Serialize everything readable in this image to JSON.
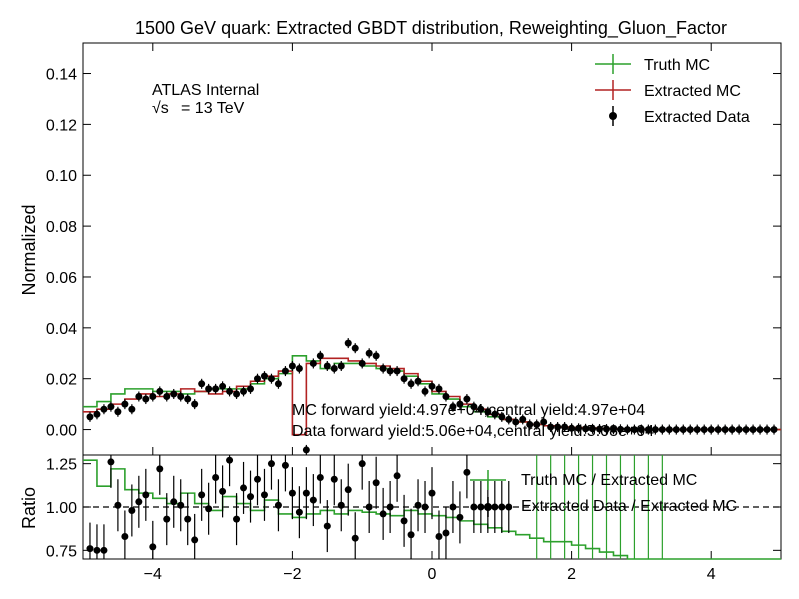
{
  "chart_data": [
    {
      "type": "histogram",
      "title": "1500 GeV quark: Extracted GBDT distribution, Reweighting_Gluon_Factor",
      "ylabel": "Normalized",
      "xlim": [
        -5,
        5
      ],
      "ylim": [
        -0.01,
        0.152
      ],
      "yticks": [
        "0.00",
        "0.02",
        "0.04",
        "0.06",
        "0.08",
        "0.10",
        "0.12",
        "0.14"
      ],
      "atlas_label": "ATLAS Internal",
      "energy_label_symbol": "√s",
      "energy_label_value": "= 13 TeV",
      "legend_position": "top-right",
      "bin_edges_x": [
        -5.0,
        -4.8,
        -4.6,
        -4.4,
        -4.2,
        -4.0,
        -3.8,
        -3.6,
        -3.4,
        -3.2,
        -3.0,
        -2.8,
        -2.6,
        -2.4,
        -2.2,
        -2.0,
        -1.8,
        -1.6,
        -1.4,
        -1.2,
        -1.0,
        -0.8,
        -0.6,
        -0.4,
        -0.2,
        0.0,
        0.2,
        0.4,
        0.6,
        0.8,
        1.0,
        1.2,
        1.4,
        1.6,
        1.8,
        2.0,
        2.2,
        2.4,
        2.6,
        2.8,
        3.0,
        3.2,
        3.4,
        3.6,
        3.8,
        4.0,
        4.2,
        4.4,
        4.6,
        4.8,
        5.0
      ],
      "series": [
        {
          "name": "Truth MC",
          "color": "#2ca02c",
          "style": "step",
          "values": [
            0.009,
            0.011,
            0.014,
            0.016,
            0.016,
            0.015,
            0.015,
            0.014,
            0.015,
            0.016,
            0.016,
            0.016,
            0.018,
            0.02,
            0.022,
            0.029,
            0.027,
            0.024,
            0.026,
            0.026,
            0.025,
            0.024,
            0.023,
            0.021,
            0.018,
            0.014,
            0.012,
            0.009,
            0.007,
            0.005,
            0.004,
            0.003,
            0.002,
            0.0015,
            0.001,
            0.0008,
            0.0006,
            0.0004,
            0.0003,
            0.0002,
            0.0001,
            0.0001,
            0.0,
            0.0,
            0.0,
            0.0,
            0.0,
            0.0,
            0.0,
            0.0
          ]
        },
        {
          "name": "Extracted MC",
          "color": "#b22222",
          "style": "step",
          "values": [
            0.007,
            0.008,
            0.01,
            0.012,
            0.014,
            0.013,
            0.014,
            0.016,
            0.015,
            0.014,
            0.015,
            0.017,
            0.019,
            0.021,
            0.023,
            -0.002,
            0.026,
            0.028,
            0.028,
            0.027,
            0.026,
            0.025,
            0.024,
            0.022,
            0.019,
            0.015,
            0.013,
            0.01,
            0.008,
            0.006,
            0.004,
            0.003,
            0.002,
            0.0015,
            0.001,
            0.0008,
            0.0006,
            0.0004,
            0.0003,
            0.0002,
            0.0001,
            0.0001,
            0.0,
            0.0,
            0.0,
            0.0,
            0.0,
            0.0,
            0.0,
            0.0
          ]
        },
        {
          "name": "Extracted Data",
          "color": "#000000",
          "style": "points",
          "x": [
            -4.9,
            -4.8,
            -4.7,
            -4.6,
            -4.5,
            -4.4,
            -4.3,
            -4.2,
            -4.1,
            -4.0,
            -3.9,
            -3.8,
            -3.7,
            -3.6,
            -3.5,
            -3.4,
            -3.3,
            -3.2,
            -3.1,
            -3.0,
            -2.9,
            -2.8,
            -2.7,
            -2.6,
            -2.5,
            -2.4,
            -2.3,
            -2.2,
            -2.1,
            -2.0,
            -1.9,
            -1.8,
            -1.7,
            -1.6,
            -1.5,
            -1.4,
            -1.3,
            -1.2,
            -1.1,
            -1.0,
            -0.9,
            -0.8,
            -0.7,
            -0.6,
            -0.5,
            -0.4,
            -0.3,
            -0.2,
            -0.1,
            0.0,
            0.1,
            0.2,
            0.3,
            0.4,
            0.5,
            0.6,
            0.7,
            0.8,
            0.9,
            1.0,
            1.1,
            1.2,
            1.3,
            1.4,
            1.5,
            1.6,
            1.7,
            1.8,
            1.9,
            2.0,
            2.1,
            2.2,
            2.3,
            2.4,
            2.5,
            2.6,
            2.7,
            2.8,
            2.9,
            3.0,
            3.1,
            3.2,
            3.3,
            3.4,
            3.5,
            3.6,
            3.7,
            3.8,
            3.9,
            4.0,
            4.1,
            4.2,
            4.3,
            4.4,
            4.5,
            4.6,
            4.7,
            4.8,
            4.9
          ],
          "y": [
            0.005,
            0.006,
            0.008,
            0.009,
            0.007,
            0.01,
            0.008,
            0.013,
            0.012,
            0.013,
            0.015,
            0.013,
            0.014,
            0.013,
            0.012,
            0.01,
            0.018,
            0.016,
            0.016,
            0.017,
            0.015,
            0.014,
            0.015,
            0.016,
            0.02,
            0.021,
            0.02,
            0.018,
            0.023,
            0.025,
            0.024,
            -0.008,
            0.026,
            0.029,
            0.025,
            0.024,
            0.025,
            0.034,
            0.032,
            0.026,
            0.03,
            0.029,
            0.024,
            0.023,
            0.023,
            0.02,
            0.018,
            0.019,
            0.015,
            0.017,
            0.016,
            0.013,
            0.009,
            0.01,
            0.012,
            0.009,
            0.008,
            0.007,
            0.006,
            0.005,
            0.004,
            0.003,
            0.004,
            0.002,
            0.002,
            0.003,
            0.001,
            0.001,
            0.001,
            0.0005,
            0.0005,
            0.0003,
            0.0003,
            0.0002,
            0.0002,
            0.0001,
            0.0001,
            0.0,
            0.0,
            0.0,
            0.0,
            0.0,
            0.0,
            0.0,
            0.0,
            0.0,
            0.0,
            0.0,
            0.0,
            0.0,
            0.0,
            0.0,
            0.0,
            0.0,
            0.0,
            0.0,
            0.0,
            0.0,
            0.0
          ]
        }
      ],
      "annotations": [
        "MC forward yield:4.97e+04,central yield:4.97e+04",
        "Data forward yield:5.06e+04,central yield:5.08e+04"
      ]
    },
    {
      "type": "ratio",
      "ylabel": "Ratio",
      "xlim": [
        -5,
        5
      ],
      "ylim": [
        0.7,
        1.3
      ],
      "yticks": [
        "0.75",
        "1.00",
        "1.25"
      ],
      "xticks": [
        "−4",
        "−2",
        "0",
        "2",
        "4"
      ],
      "reference_line": 1.0,
      "legend_position": "top-right",
      "series": [
        {
          "name": "Truth MC / Extracted MC",
          "color": "#2ca02c",
          "style": "step",
          "values": [
            1.27,
            1.12,
            1.22,
            1.1,
            1.08,
            1.05,
            1.02,
            1.08,
            1.02,
            0.98,
            1.06,
            1.02,
            0.98,
            1.04,
            0.96,
            0.94,
            0.96,
            0.98,
            0.96,
            0.98,
            0.97,
            0.96,
            0.95,
            0.98,
            0.96,
            0.95,
            0.94,
            0.92,
            0.9,
            0.88,
            0.86,
            0.84,
            0.82,
            0.8,
            0.8,
            0.78,
            0.76,
            0.74,
            0.72,
            0.7,
            0.7,
            0.7,
            0.7,
            0.7,
            0.7,
            0.7,
            0.7,
            0.7,
            0.7,
            0.7
          ]
        },
        {
          "name": "Extracted Data / Extracted MC",
          "color": "#000000",
          "style": "points",
          "x": [
            -4.9,
            -4.8,
            -4.7,
            -4.6,
            -4.5,
            -4.4,
            -4.3,
            -4.2,
            -4.1,
            -4.0,
            -3.9,
            -3.8,
            -3.7,
            -3.6,
            -3.5,
            -3.4,
            -3.3,
            -3.2,
            -3.1,
            -3.0,
            -2.9,
            -2.8,
            -2.7,
            -2.6,
            -2.5,
            -2.4,
            -2.3,
            -2.2,
            -2.1,
            -2.0,
            -1.9,
            -1.8,
            -1.7,
            -1.6,
            -1.5,
            -1.4,
            -1.3,
            -1.2,
            -1.1,
            -1.0,
            -0.9,
            -0.8,
            -0.7,
            -0.6,
            -0.5,
            -0.4,
            -0.3,
            -0.2,
            -0.1,
            0.0,
            0.1,
            0.2,
            0.3,
            0.4,
            0.5,
            0.6,
            0.7,
            0.8,
            0.9,
            1.0,
            1.1
          ],
          "y": [
            0.76,
            0.75,
            0.75,
            1.26,
            1.01,
            0.83,
            0.98,
            1.03,
            1.07,
            0.77,
            1.22,
            0.93,
            1.03,
            1.01,
            0.93,
            0.81,
            1.07,
            0.99,
            1.17,
            1.09,
            1.27,
            0.93,
            1.11,
            1.06,
            1.16,
            1.07,
            1.25,
            1.01,
            1.24,
            1.08,
            0.97,
            1.08,
            1.04,
            1.17,
            0.89,
            1.16,
            1.01,
            1.1,
            0.82,
            1.25,
            1.0,
            1.14,
            0.96,
            1.0,
            1.18,
            0.92,
            0.84,
            1.01,
            1.0,
            1.08,
            0.83,
            0.85,
            1.0,
            0.94,
            1.2,
            1.0,
            1.0,
            1.0,
            1.0,
            1.0,
            1.0
          ]
        }
      ]
    }
  ]
}
